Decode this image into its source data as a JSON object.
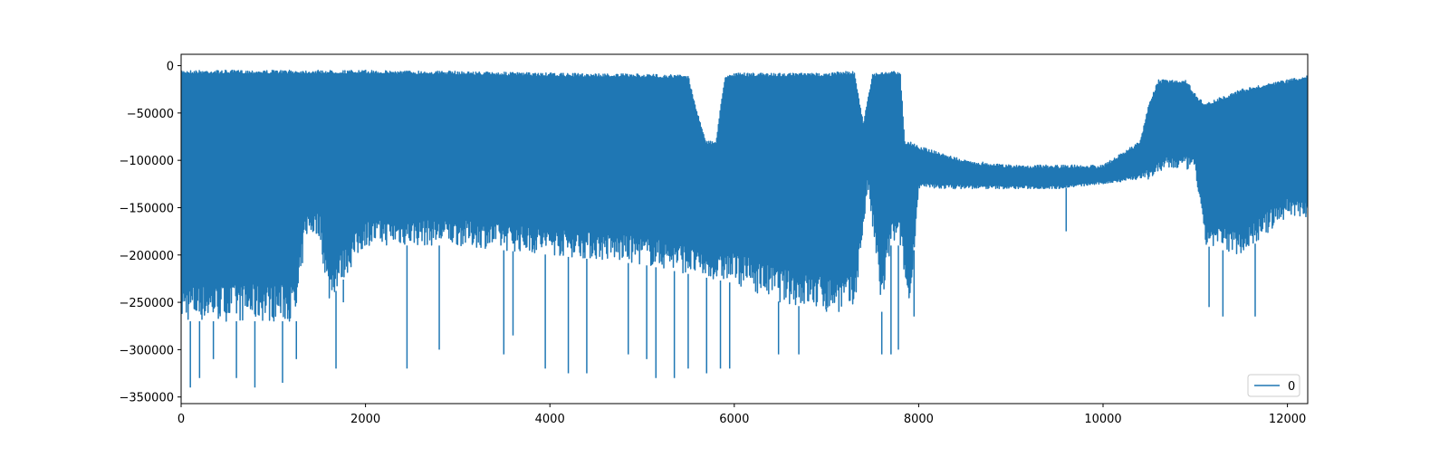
{
  "chart_data": {
    "type": "line",
    "title": "",
    "xlabel": "",
    "ylabel": "",
    "xlim": [
      0,
      12220
    ],
    "ylim": [
      -357000,
      12000
    ],
    "xticks": [
      0,
      2000,
      4000,
      6000,
      8000,
      10000,
      12000
    ],
    "xtick_labels": [
      "0",
      "2000",
      "4000",
      "6000",
      "8000",
      "10000",
      "12000"
    ],
    "yticks": [
      0,
      -50000,
      -100000,
      -150000,
      -200000,
      -250000,
      -300000,
      -350000
    ],
    "ytick_labels": [
      "0",
      "−50000",
      "−100000",
      "−150000",
      "−200000",
      "−250000",
      "−300000",
      "−350000"
    ],
    "grid": false,
    "legend": {
      "position": "lower-right",
      "entries": [
        "0"
      ]
    },
    "series": [
      {
        "name": "0",
        "color": "#1f77b4",
        "n_points": 12220,
        "upper_envelope": {
          "x": [
            0,
            1000,
            2000,
            3000,
            4000,
            5000,
            5500,
            5600,
            5700,
            5800,
            5900,
            6000,
            6500,
            7000,
            7200,
            7300,
            7400,
            7500,
            7700,
            7800,
            7850,
            7900,
            8000,
            8500,
            9000,
            9500,
            10000,
            10400,
            10500,
            10600,
            10900,
            11000,
            11100,
            11500,
            12000,
            12220
          ],
          "y": [
            -5000,
            -5000,
            -5000,
            -6000,
            -8000,
            -9000,
            -10000,
            -50000,
            -80000,
            -80000,
            -10000,
            -8000,
            -8000,
            -8000,
            -6000,
            -6000,
            -60000,
            -8000,
            -6000,
            -6000,
            -80000,
            -80000,
            -85000,
            -100000,
            -105000,
            -105000,
            -105000,
            -80000,
            -40000,
            -15000,
            -15000,
            -30000,
            -40000,
            -25000,
            -15000,
            -10000
          ]
        },
        "lower_envelope": {
          "x": [
            0,
            1000,
            1250,
            1350,
            1500,
            1600,
            2000,
            3000,
            4000,
            5000,
            6000,
            6500,
            7000,
            7300,
            7450,
            7600,
            7700,
            7800,
            7900,
            8000,
            8500,
            9000,
            9500,
            10000,
            10400,
            10500,
            10700,
            11000,
            11100,
            11500,
            12000,
            12220
          ],
          "y": [
            -270000,
            -270000,
            -270000,
            -180000,
            -180000,
            -250000,
            -190000,
            -190000,
            -200000,
            -210000,
            -230000,
            -250000,
            -260000,
            -260000,
            -130000,
            -260000,
            -190000,
            -190000,
            -260000,
            -130000,
            -130000,
            -130000,
            -130000,
            -125000,
            -120000,
            -120000,
            -110000,
            -110000,
            -190000,
            -200000,
            -160000,
            -160000
          ]
        },
        "spikes": {
          "x": [
            100,
            200,
            350,
            600,
            800,
            1100,
            1250,
            1680,
            1760,
            2450,
            2800,
            3500,
            3600,
            3950,
            4200,
            4400,
            4850,
            5050,
            5150,
            5350,
            5500,
            5700,
            5850,
            5950,
            6480,
            6700,
            7000,
            7600,
            7700,
            7780,
            7950,
            9600,
            11150,
            11300,
            11650,
            12200
          ],
          "y": [
            -340000,
            -330000,
            -310000,
            -330000,
            -340000,
            -335000,
            -310000,
            -320000,
            -250000,
            -320000,
            -300000,
            -305000,
            -285000,
            -320000,
            -325000,
            -325000,
            -305000,
            -310000,
            -330000,
            -330000,
            -320000,
            -325000,
            -320000,
            -320000,
            -305000,
            -305000,
            -255000,
            -305000,
            -305000,
            -300000,
            -265000,
            -175000,
            -255000,
            -265000,
            -265000,
            -120000
          ]
        }
      }
    ]
  }
}
